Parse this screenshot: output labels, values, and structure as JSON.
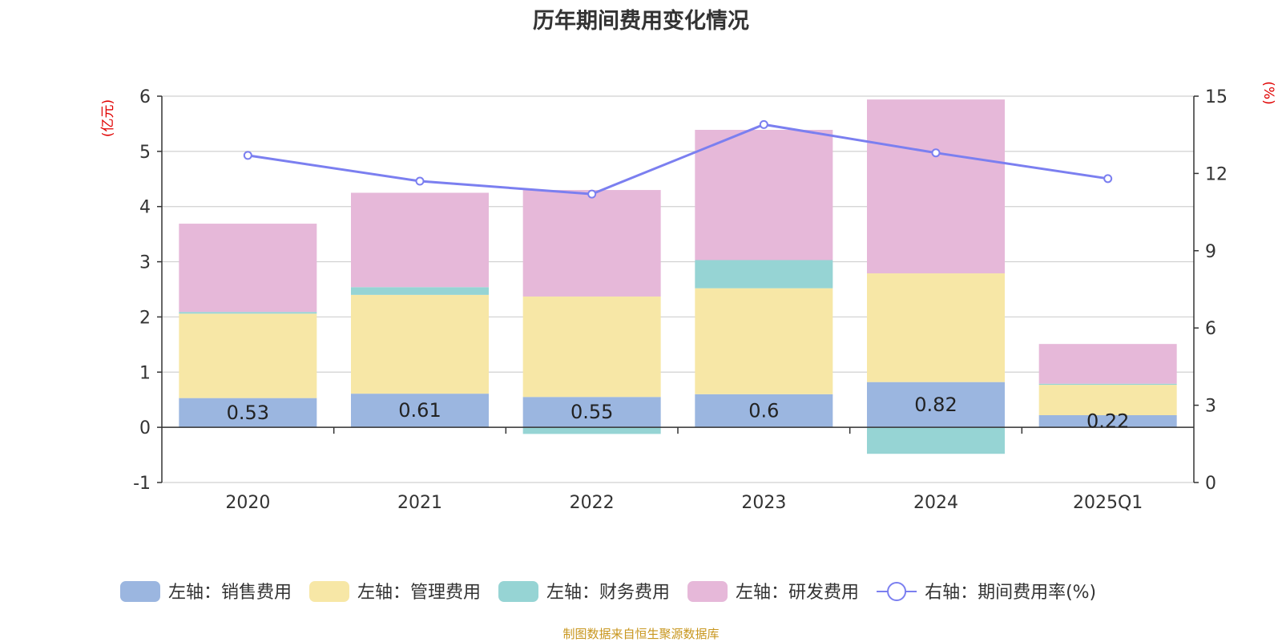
{
  "chart_data": {
    "type": "bar",
    "title": "历年期间费用变化情况",
    "categories": [
      "2020",
      "2021",
      "2022",
      "2023",
      "2024",
      "2025Q1"
    ],
    "stacked": true,
    "series": [
      {
        "name": "左轴：销售费用",
        "axis": "left",
        "color": "#9bb6e0",
        "values": [
          0.53,
          0.61,
          0.55,
          0.6,
          0.82,
          0.22
        ],
        "data_labels": [
          "0.53",
          "0.61",
          "0.55",
          "0.6",
          "0.82",
          "0.22"
        ]
      },
      {
        "name": "左轴：管理费用",
        "axis": "left",
        "color": "#f7e7a6",
        "values": [
          1.53,
          1.79,
          1.82,
          1.92,
          1.97,
          0.55
        ]
      },
      {
        "name": "左轴：财务费用",
        "axis": "left",
        "color": "#96d4d4",
        "values": [
          0.03,
          0.14,
          -0.12,
          0.51,
          -0.48,
          0.02
        ]
      },
      {
        "name": "左轴：研发费用",
        "axis": "left",
        "color": "#e6b8d9",
        "values": [
          1.6,
          1.71,
          1.93,
          2.36,
          3.15,
          0.72
        ]
      },
      {
        "name": "右轴：期间费用率(%)",
        "axis": "right",
        "type": "line",
        "color": "#7b7ff0",
        "values": [
          12.7,
          11.7,
          11.2,
          13.9,
          12.8,
          11.8
        ]
      }
    ],
    "y_left": {
      "label": "(亿元)",
      "ylim": [
        -1,
        6
      ],
      "ticks": [
        -1,
        0,
        1,
        2,
        3,
        4,
        5,
        6
      ]
    },
    "y_right": {
      "label": "(%)",
      "ylim": [
        0,
        15
      ],
      "ticks": [
        0,
        3,
        6,
        9,
        12,
        15
      ]
    },
    "grid": true,
    "legend_position": "bottom"
  },
  "source": "制图数据来自恒生聚源数据库"
}
